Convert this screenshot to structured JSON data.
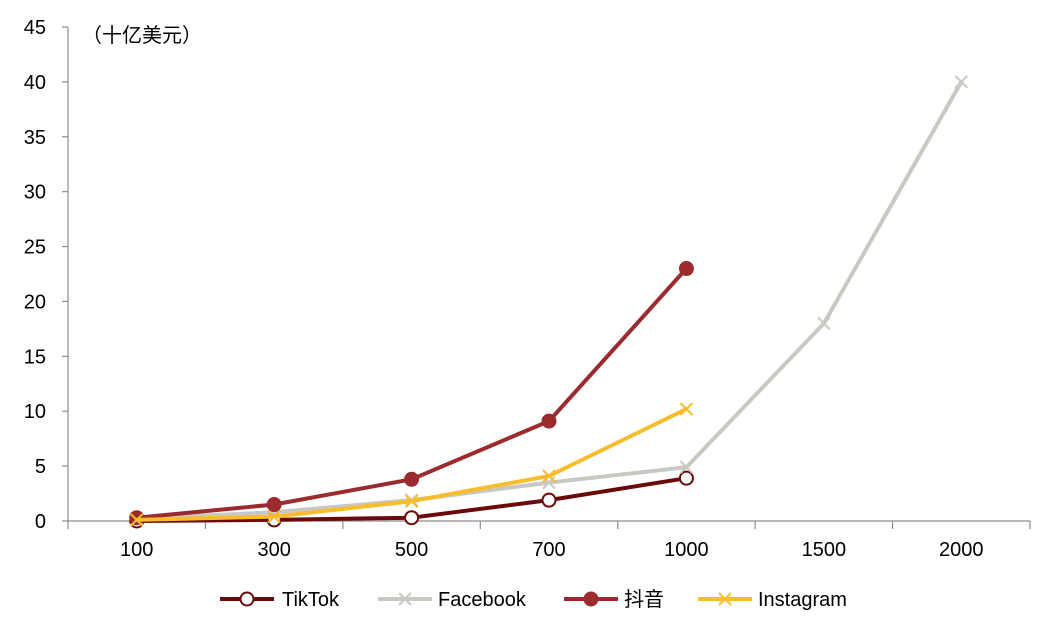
{
  "chart_data": {
    "type": "line",
    "unit_label": "（十亿美元）",
    "categories": [
      "100",
      "300",
      "500",
      "700",
      "1000",
      "1500",
      "2000"
    ],
    "ylim": [
      0,
      45
    ],
    "yticks": [
      "0",
      "5",
      "10",
      "15",
      "20",
      "25",
      "30",
      "35",
      "40",
      "45"
    ],
    "legend_position": "bottom",
    "series": [
      {
        "name": "TikTok",
        "color": "#6B0A0A",
        "marker": "open-circle",
        "values": [
          0,
          0.1,
          0.3,
          1.9,
          3.9,
          null,
          null
        ]
      },
      {
        "name": "Facebook",
        "color": "#C9C8C2",
        "marker": "x",
        "values": [
          0.2,
          0.8,
          1.9,
          3.5,
          4.9,
          18,
          40
        ]
      },
      {
        "name": "抖音",
        "color": "#9B2B2E",
        "marker": "filled-circle",
        "values": [
          0.3,
          1.5,
          3.8,
          9.1,
          23,
          null,
          null
        ]
      },
      {
        "name": "Instagram",
        "color": "#F7BD2C",
        "marker": "x",
        "values": [
          0.1,
          0.4,
          1.8,
          4.1,
          10.2,
          null,
          null
        ]
      }
    ]
  }
}
